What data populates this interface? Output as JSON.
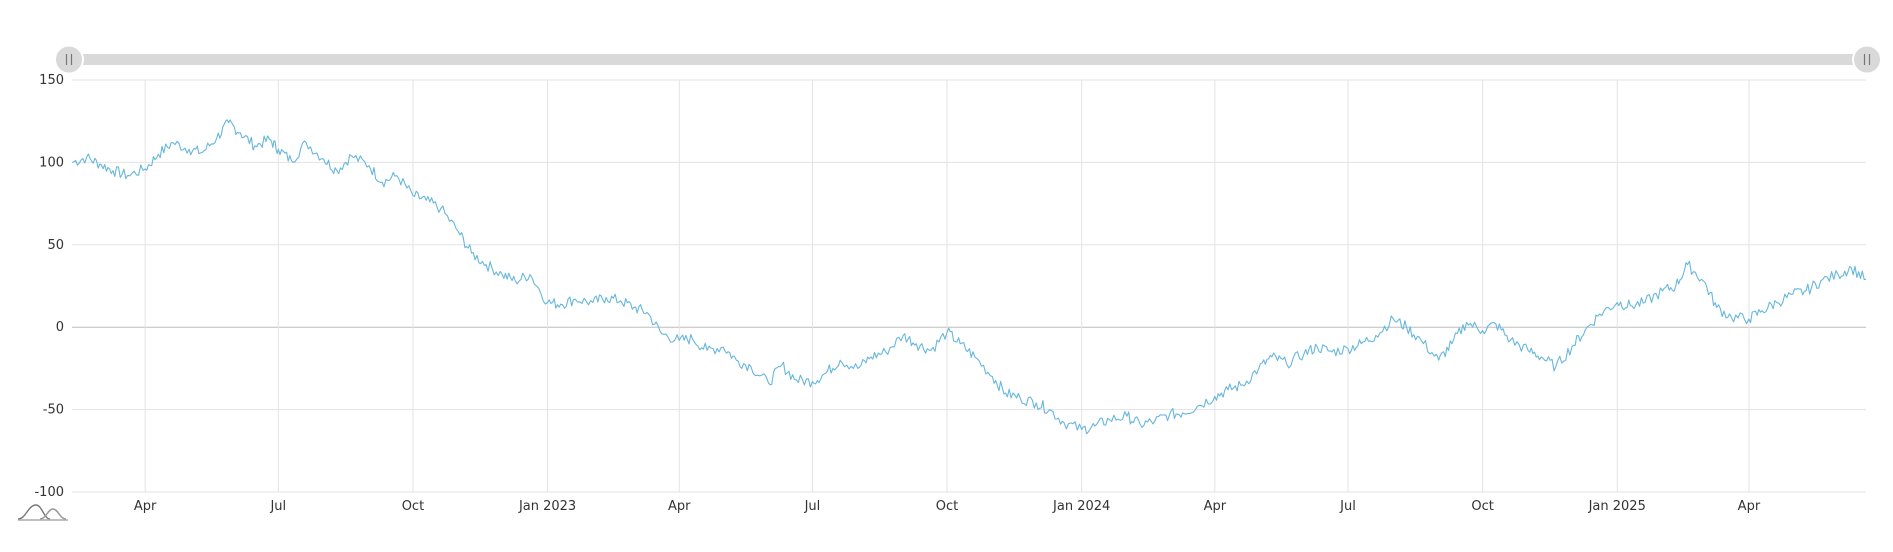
{
  "chart_data": {
    "type": "line",
    "title": "",
    "xlabel": "",
    "ylabel": "",
    "x_range": [
      "2022-02-10",
      "2025-06-20"
    ],
    "ylim": [
      -100,
      150
    ],
    "y_ticks": [
      150,
      100,
      50,
      0,
      -50,
      -100
    ],
    "x_ticks": [
      {
        "date": "2022-04-01",
        "label": "Apr"
      },
      {
        "date": "2022-07-01",
        "label": "Jul"
      },
      {
        "date": "2022-10-01",
        "label": "Oct"
      },
      {
        "date": "2023-01-01",
        "label": "Jan 2023"
      },
      {
        "date": "2023-04-01",
        "label": "Apr"
      },
      {
        "date": "2023-07-01",
        "label": "Jul"
      },
      {
        "date": "2023-10-01",
        "label": "Oct"
      },
      {
        "date": "2024-01-01",
        "label": "Jan 2024"
      },
      {
        "date": "2024-04-01",
        "label": "Apr"
      },
      {
        "date": "2024-07-01",
        "label": "Jul"
      },
      {
        "date": "2024-10-01",
        "label": "Oct"
      },
      {
        "date": "2025-01-01",
        "label": "Jan 2025"
      },
      {
        "date": "2025-04-01",
        "label": "Apr"
      }
    ],
    "grid": true,
    "series": [
      {
        "color": "#67b7dc",
        "points": [
          [
            "2022-02-10",
            100
          ],
          [
            "2022-02-20",
            103
          ],
          [
            "2022-03-01",
            99
          ],
          [
            "2022-03-10",
            95
          ],
          [
            "2022-03-20",
            92
          ],
          [
            "2022-04-01",
            96
          ],
          [
            "2022-04-10",
            105
          ],
          [
            "2022-04-20",
            112
          ],
          [
            "2022-05-01",
            108
          ],
          [
            "2022-05-10",
            106
          ],
          [
            "2022-05-20",
            115
          ],
          [
            "2022-05-28",
            124
          ],
          [
            "2022-06-05",
            118
          ],
          [
            "2022-06-15",
            110
          ],
          [
            "2022-06-25",
            114
          ],
          [
            "2022-07-01",
            108
          ],
          [
            "2022-07-10",
            101
          ],
          [
            "2022-07-20",
            112
          ],
          [
            "2022-08-01",
            102
          ],
          [
            "2022-08-10",
            95
          ],
          [
            "2022-08-20",
            104
          ],
          [
            "2022-09-01",
            98
          ],
          [
            "2022-09-10",
            88
          ],
          [
            "2022-09-20",
            92
          ],
          [
            "2022-10-01",
            80
          ],
          [
            "2022-10-10",
            77
          ],
          [
            "2022-10-20",
            72
          ],
          [
            "2022-11-01",
            58
          ],
          [
            "2022-11-10",
            45
          ],
          [
            "2022-11-20",
            38
          ],
          [
            "2022-12-01",
            32
          ],
          [
            "2022-12-10",
            28
          ],
          [
            "2022-12-20",
            32
          ],
          [
            "2023-01-01",
            15
          ],
          [
            "2023-01-10",
            14
          ],
          [
            "2023-01-20",
            17
          ],
          [
            "2023-02-01",
            15
          ],
          [
            "2023-02-10",
            18
          ],
          [
            "2023-02-20",
            16
          ],
          [
            "2023-03-01",
            12
          ],
          [
            "2023-03-10",
            9
          ],
          [
            "2023-03-20",
            -4
          ],
          [
            "2023-04-01",
            -8
          ],
          [
            "2023-04-10",
            -7
          ],
          [
            "2023-04-20",
            -14
          ],
          [
            "2023-05-01",
            -12
          ],
          [
            "2023-05-10",
            -20
          ],
          [
            "2023-05-20",
            -24
          ],
          [
            "2023-06-01",
            -34
          ],
          [
            "2023-06-10",
            -23
          ],
          [
            "2023-06-20",
            -32
          ],
          [
            "2023-07-01",
            -33
          ],
          [
            "2023-07-10",
            -28
          ],
          [
            "2023-07-20",
            -20
          ],
          [
            "2023-08-01",
            -25
          ],
          [
            "2023-08-10",
            -18
          ],
          [
            "2023-08-20",
            -15
          ],
          [
            "2023-09-01",
            -5
          ],
          [
            "2023-09-10",
            -10
          ],
          [
            "2023-09-20",
            -14
          ],
          [
            "2023-10-01",
            -3
          ],
          [
            "2023-10-10",
            -10
          ],
          [
            "2023-10-20",
            -18
          ],
          [
            "2023-11-01",
            -30
          ],
          [
            "2023-11-10",
            -40
          ],
          [
            "2023-11-20",
            -43
          ],
          [
            "2023-12-01",
            -46
          ],
          [
            "2023-12-10",
            -50
          ],
          [
            "2023-12-20",
            -58
          ],
          [
            "2024-01-01",
            -62
          ],
          [
            "2024-01-10",
            -60
          ],
          [
            "2024-01-20",
            -56
          ],
          [
            "2024-02-01",
            -54
          ],
          [
            "2024-02-10",
            -59
          ],
          [
            "2024-02-20",
            -57
          ],
          [
            "2024-03-01",
            -53
          ],
          [
            "2024-03-10",
            -52
          ],
          [
            "2024-03-20",
            -48
          ],
          [
            "2024-04-01",
            -42
          ],
          [
            "2024-04-10",
            -38
          ],
          [
            "2024-04-20",
            -35
          ],
          [
            "2024-05-01",
            -25
          ],
          [
            "2024-05-10",
            -18
          ],
          [
            "2024-05-20",
            -22
          ],
          [
            "2024-06-01",
            -16
          ],
          [
            "2024-06-10",
            -12
          ],
          [
            "2024-06-20",
            -15
          ],
          [
            "2024-07-01",
            -13
          ],
          [
            "2024-07-10",
            -10
          ],
          [
            "2024-07-20",
            -5
          ],
          [
            "2024-08-01",
            5
          ],
          [
            "2024-08-10",
            0
          ],
          [
            "2024-08-20",
            -8
          ],
          [
            "2024-09-01",
            -20
          ],
          [
            "2024-09-10",
            -10
          ],
          [
            "2024-09-20",
            3
          ],
          [
            "2024-10-01",
            -2
          ],
          [
            "2024-10-10",
            2
          ],
          [
            "2024-10-20",
            -8
          ],
          [
            "2024-11-01",
            -14
          ],
          [
            "2024-11-10",
            -18
          ],
          [
            "2024-11-20",
            -24
          ],
          [
            "2024-12-01",
            -12
          ],
          [
            "2024-12-10",
            -2
          ],
          [
            "2024-12-20",
            8
          ],
          [
            "2025-01-01",
            15
          ],
          [
            "2025-01-10",
            13
          ],
          [
            "2025-01-20",
            15
          ],
          [
            "2025-02-01",
            22
          ],
          [
            "2025-02-10",
            25
          ],
          [
            "2025-02-18",
            38
          ],
          [
            "2025-03-01",
            28
          ],
          [
            "2025-03-10",
            12
          ],
          [
            "2025-03-20",
            6
          ],
          [
            "2025-04-01",
            5
          ],
          [
            "2025-04-10",
            10
          ],
          [
            "2025-04-20",
            15
          ],
          [
            "2025-05-01",
            20
          ],
          [
            "2025-05-10",
            22
          ],
          [
            "2025-05-20",
            28
          ],
          [
            "2025-06-01",
            32
          ],
          [
            "2025-06-10",
            36
          ],
          [
            "2025-06-20",
            29
          ]
        ]
      }
    ]
  }
}
